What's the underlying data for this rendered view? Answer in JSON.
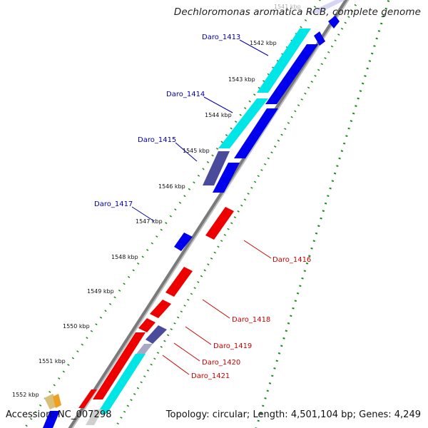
{
  "title": "Dechloromonas aromatica RCB, complete genome",
  "accession": {
    "label": "Accession:",
    "value": "NC_007298"
  },
  "topology": {
    "label": "Topology:",
    "value": "circular"
  },
  "length": {
    "label": "Length:",
    "value": "4,501,104 bp"
  },
  "genes": {
    "label": "Genes:",
    "value": "4,249"
  },
  "ticks": [
    "1541 kbp",
    "1542 kbp",
    "1543 kbp",
    "1544 kbp",
    "1545 kbp",
    "1546 kbp",
    "1547 kbp",
    "1548 kbp",
    "1549 kbp",
    "1550 kbp",
    "1551 kbp",
    "1552 kbp"
  ],
  "gene_labels_forward": [
    "Daro_1413",
    "Daro_1414",
    "Daro_1415",
    "Daro_1417"
  ],
  "gene_labels_reverse": [
    "Daro_1416",
    "Daro_1418",
    "Daro_1419",
    "Daro_1420",
    "Daro_1421"
  ],
  "colors": {
    "forward_cds": "#0000ee",
    "reverse_cds": "#ee0000",
    "forward_label": "#0000aa",
    "reverse_label": "#cc0000",
    "highlight_cyan": "#00e5e5",
    "highlight_purple": "#4b4b9c",
    "backbone": "#8a8a8a",
    "tick_dots": "#1a8a1a"
  }
}
